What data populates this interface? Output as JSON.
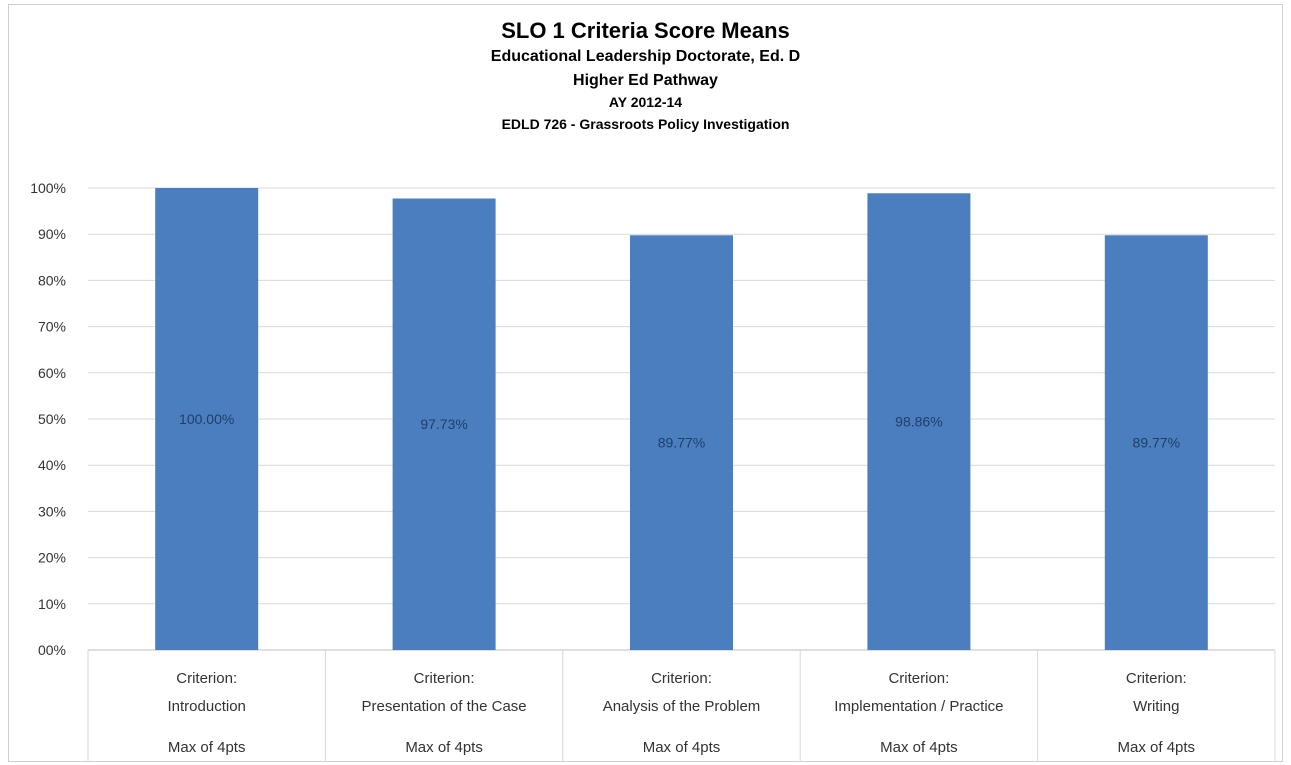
{
  "chart_data": {
    "type": "bar",
    "title": "SLO 1 Criteria Score Means",
    "subtitles": [
      "Educational Leadership Doctorate, Ed. D",
      "Higher Ed Pathway",
      "AY 2012-14",
      "EDLD 726 - Grassroots Policy Investigation"
    ],
    "categories": [
      {
        "line1": "Criterion:",
        "line2": "Introduction",
        "line3": "Max of 4pts"
      },
      {
        "line1": "Criterion:",
        "line2": "Presentation of the Case",
        "line3": "Max of 4pts"
      },
      {
        "line1": "Criterion:",
        "line2": "Analysis of the Problem",
        "line3": "Max of 4pts"
      },
      {
        "line1": "Criterion:",
        "line2": "Implementation / Practice",
        "line3": "Max of 4pts"
      },
      {
        "line1": "Criterion:",
        "line2": "Writing",
        "line3": "Max of 4pts"
      }
    ],
    "values": [
      100.0,
      97.73,
      89.77,
      98.86,
      89.77
    ],
    "data_labels": [
      "100.00%",
      "97.73%",
      "89.77%",
      "98.86%",
      "89.77%"
    ],
    "y_ticks": [
      "00%",
      "10%",
      "20%",
      "30%",
      "40%",
      "50%",
      "60%",
      "70%",
      "80%",
      "90%",
      "100%"
    ],
    "ylim": [
      0,
      100
    ],
    "grid": true,
    "legend": "none",
    "bar_color": "#4a7ebf"
  }
}
